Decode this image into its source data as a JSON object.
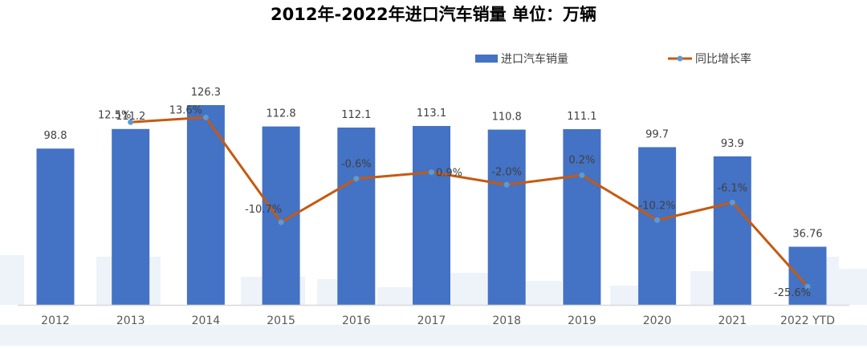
{
  "chart_data": {
    "type": "bar",
    "title": "2012年-2022年进口汽车销量  单位：万辆",
    "categories": [
      "2012",
      "2013",
      "2014",
      "2015",
      "2016",
      "2017",
      "2018",
      "2019",
      "2020",
      "2021",
      "2022 YTD"
    ],
    "series": [
      {
        "name": "进口汽车销量",
        "type": "bar",
        "values": [
          98.8,
          111.2,
          126.3,
          112.8,
          112.1,
          113.1,
          110.8,
          111.1,
          99.7,
          93.9,
          36.76
        ],
        "labels": [
          "98.8",
          "111.2",
          "126.3",
          "112.8",
          "112.1",
          "113.1",
          "110.8",
          "111.1",
          "99.7",
          "93.9",
          "36.76"
        ]
      },
      {
        "name": "同比增长率",
        "type": "line",
        "values": [
          null,
          12.5,
          13.6,
          -10.7,
          -0.6,
          0.9,
          -2.0,
          0.2,
          -10.2,
          -6.1,
          -25.6
        ],
        "labels": [
          "",
          "12.5%",
          "13.6%",
          "-10.7%",
          "-0.6%",
          "0.9%",
          "-2.0%",
          "0.2%",
          "-10.2%",
          "-6.1%",
          "-25.6%"
        ]
      }
    ],
    "legend_position": "top-right",
    "grid": false,
    "colors": {
      "bar": "#4472C4",
      "line": "#C55A11",
      "marker": "#5B9BD5",
      "axis": "#D9D9D9",
      "label_text": "#404040"
    }
  }
}
